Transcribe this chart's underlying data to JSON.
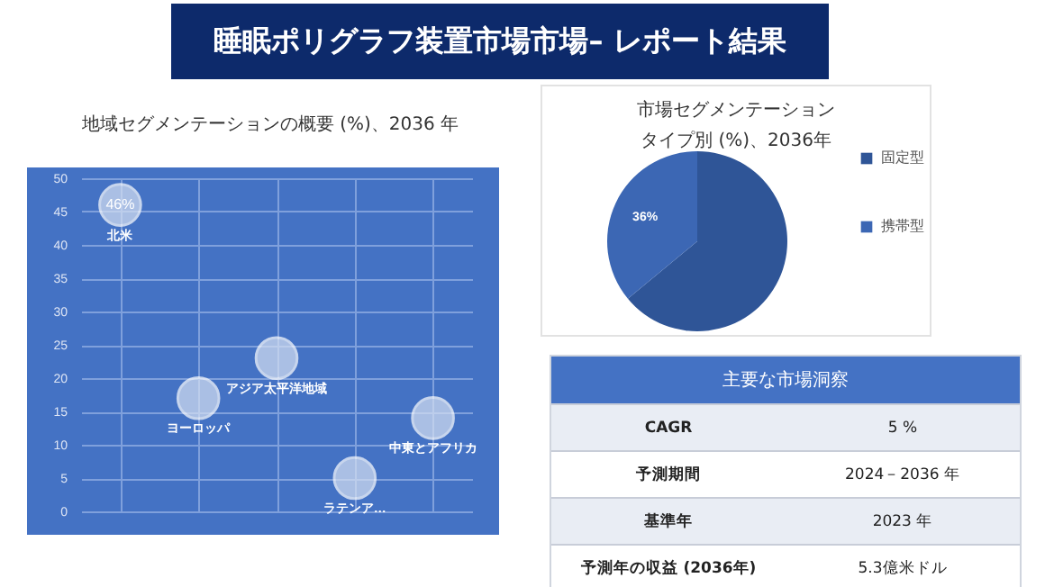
{
  "chart_data": [
    {
      "type": "other",
      "title": "睡眠ポリグラフ装置市場市場– レポート結果"
    },
    {
      "type": "scatter",
      "title": "地域セグメンテーションの概要 (%)、2036 年",
      "categories": [
        null,
        null,
        null,
        null,
        null
      ],
      "series": [
        {
          "name": "北米",
          "color": "#d6e0f2",
          "values": [
            46,
            null,
            null,
            null,
            null
          ],
          "value_labels": [
            "46%",
            null,
            null,
            null,
            null
          ]
        },
        {
          "name": "ヨーロッパ",
          "color": "#d6e0f2",
          "values": [
            null,
            17,
            null,
            null,
            null
          ]
        },
        {
          "name": "アジア太平洋地域",
          "color": "#d6e0f2",
          "values": [
            null,
            null,
            23,
            null,
            null
          ]
        },
        {
          "name": "ラテンア…",
          "color": "#d6e0f2",
          "values": [
            null,
            null,
            null,
            5,
            null
          ]
        },
        {
          "name": "中東とアフリカ",
          "color": "#d6e0f2",
          "values": [
            null,
            null,
            null,
            null,
            14
          ]
        }
      ],
      "ylim": [
        0,
        50
      ],
      "yticks": [
        0,
        5,
        10,
        15,
        20,
        25,
        30,
        35,
        40,
        45,
        50
      ],
      "grid": true,
      "marker": "circle",
      "tick_labels": "y"
    },
    {
      "type": "pie",
      "title": "市場セグメンテーション",
      "subtitle": "タイプ別 (%)、2036年",
      "categories": [
        "固定型",
        "携帯型"
      ],
      "values": [
        64,
        36
      ],
      "colors": [
        "#2f5597",
        "#3c67b4"
      ],
      "value_labels": [
        null,
        "36%"
      ],
      "legend": "right"
    },
    {
      "type": "other",
      "title": "主要な市場洞察",
      "annotations": [
        "CAGR",
        "5 %",
        "予測期間",
        "2024－2036 年",
        "基準年",
        "2023 年",
        "予測年の収益 (2036年)",
        "5.3億米ドル"
      ]
    }
  ]
}
